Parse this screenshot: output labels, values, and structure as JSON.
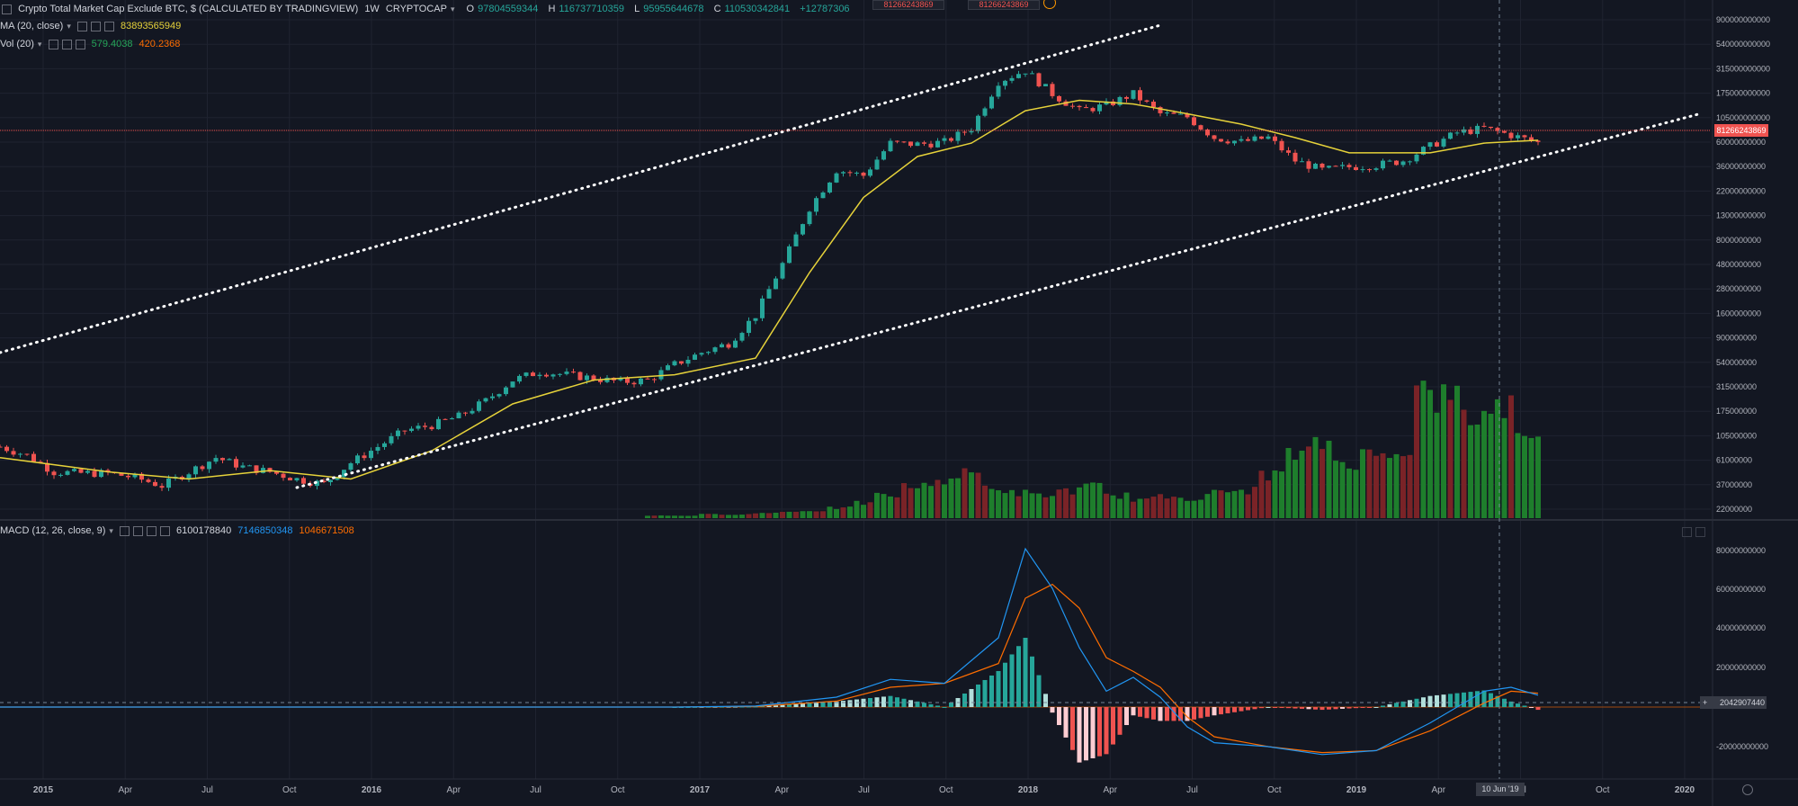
{
  "header": {
    "symbol_title": "Crypto Total Market Cap Exclude BTC, $ (CALCULATED BY TRADINGVIEW)",
    "interval": "1W",
    "exchange": "CRYPTOCAP",
    "o_label": "O",
    "o_value": "97804559344",
    "h_label": "H",
    "h_value": "116737710359",
    "l_label": "L",
    "l_value": "95955644678",
    "c_label": "C",
    "c_value": "110530342841",
    "change_value": "+12787306",
    "buy_price": "81266243869",
    "sell_price": "81266243869"
  },
  "indicators": {
    "ma_label": "MA (20, close)",
    "ma_value": "83893565949",
    "vol_label": "Vol (20)",
    "vol_value_1": "579.4038",
    "vol_value_2": "420.2368",
    "macd_label": "MACD (12, 26, close, 9)",
    "macd_hist": "6100178840",
    "macd_line": "7146850348",
    "macd_signal": "1046671508"
  },
  "price_badge": "81266243869",
  "macd_badge": "2042907440",
  "cursor_date": "10 Jun '19",
  "colors": {
    "up": "#26a69a",
    "down": "#ef5350",
    "ma": "#e6d23a",
    "macd": "#2196f3",
    "signal": "#ff6d00",
    "vol_up": "#1e7e2c",
    "vol_down": "#7a2327",
    "bg": "#131722"
  },
  "chart_data": [
    {
      "type": "candlestick",
      "title": "Crypto Total Market Cap Exclude BTC, $",
      "log_scale": true,
      "ylim": [
        17000000000,
        1000000000000
      ],
      "y_tick_labels": [
        "900000000000",
        "540000000000",
        "315000000000",
        "175000000000",
        "105000000000",
        "60000000000",
        "36000000000",
        "22000000000",
        "13000000000",
        "8000000000",
        "4800000000",
        "2800000000",
        "1600000000",
        "900000000",
        "540000000",
        "315000000",
        "175000000",
        "105000000",
        "61000000",
        "37000000",
        "22000000"
      ],
      "x_tick_labels": [
        "2015",
        "Apr",
        "Jul",
        "Oct",
        "2016",
        "Apr",
        "Jul",
        "Oct",
        "2017",
        "Apr",
        "Jul",
        "Oct",
        "2018",
        "Apr",
        "Jul",
        "Oct",
        "2019",
        "Apr",
        "Jul",
        "Oct",
        "2020"
      ],
      "x_range": [
        "2014-11",
        "2020-02"
      ],
      "close_series": [
        [
          "2014-11",
          120000000
        ],
        [
          "2014-12",
          100000000
        ],
        [
          "2015-01",
          70000000
        ],
        [
          "2015-02",
          68000000
        ],
        [
          "2015-03",
          68000000
        ],
        [
          "2015-04",
          62000000
        ],
        [
          "2015-05",
          52000000
        ],
        [
          "2015-06",
          70000000
        ],
        [
          "2015-07",
          95000000
        ],
        [
          "2015-08",
          78000000
        ],
        [
          "2015-09",
          70000000
        ],
        [
          "2015-10",
          60000000
        ],
        [
          "2015-11",
          54000000
        ],
        [
          "2015-12",
          85000000
        ],
        [
          "2016-01",
          120000000
        ],
        [
          "2016-02",
          170000000
        ],
        [
          "2016-03",
          190000000
        ],
        [
          "2016-04",
          230000000
        ],
        [
          "2016-05",
          320000000
        ],
        [
          "2016-06",
          500000000
        ],
        [
          "2016-07",
          600000000
        ],
        [
          "2016-08",
          560000000
        ],
        [
          "2016-09",
          520000000
        ],
        [
          "2016-10",
          480000000
        ],
        [
          "2016-11",
          500000000
        ],
        [
          "2016-12",
          700000000
        ],
        [
          "2017-01",
          900000000
        ],
        [
          "2017-02",
          1100000000
        ],
        [
          "2017-03",
          2000000000
        ],
        [
          "2017-04",
          6000000000
        ],
        [
          "2017-05",
          20000000000
        ],
        [
          "2017-06",
          45000000000
        ],
        [
          "2017-07",
          40000000000
        ],
        [
          "2017-08",
          80000000000
        ],
        [
          "2017-09",
          78000000000
        ],
        [
          "2017-10",
          82000000000
        ],
        [
          "2017-11",
          110000000000
        ],
        [
          "2017-12",
          300000000000
        ],
        [
          "2018-01",
          380000000000
        ],
        [
          "2018-02",
          230000000000
        ],
        [
          "2018-03",
          160000000000
        ],
        [
          "2018-04",
          180000000000
        ],
        [
          "2018-05",
          230000000000
        ],
        [
          "2018-06",
          150000000000
        ],
        [
          "2018-07",
          140000000000
        ],
        [
          "2018-08",
          90000000000
        ],
        [
          "2018-09",
          82000000000
        ],
        [
          "2018-10",
          90000000000
        ],
        [
          "2018-11",
          55000000000
        ],
        [
          "2018-12",
          45000000000
        ],
        [
          "2019-01",
          48000000000
        ],
        [
          "2019-02",
          50000000000
        ],
        [
          "2019-03",
          55000000000
        ],
        [
          "2019-04",
          75000000000
        ],
        [
          "2019-05",
          100000000000
        ],
        [
          "2019-06",
          110000000000
        ],
        [
          "2019-07",
          95000000000
        ],
        [
          "2019-08",
          81000000000
        ]
      ],
      "ma_series": [
        [
          "2014-11",
          95000000
        ],
        [
          "2015-03",
          70000000
        ],
        [
          "2015-06",
          60000000
        ],
        [
          "2015-09",
          72000000
        ],
        [
          "2015-12",
          60000000
        ],
        [
          "2016-03",
          110000000
        ],
        [
          "2016-06",
          300000000
        ],
        [
          "2016-09",
          500000000
        ],
        [
          "2016-12",
          560000000
        ],
        [
          "2017-03",
          800000000
        ],
        [
          "2017-05",
          5000000000
        ],
        [
          "2017-07",
          25000000000
        ],
        [
          "2017-09",
          60000000000
        ],
        [
          "2017-11",
          80000000000
        ],
        [
          "2018-01",
          160000000000
        ],
        [
          "2018-03",
          200000000000
        ],
        [
          "2018-05",
          185000000000
        ],
        [
          "2018-07",
          150000000000
        ],
        [
          "2018-09",
          120000000000
        ],
        [
          "2018-11",
          90000000000
        ],
        [
          "2019-01",
          65000000000
        ],
        [
          "2019-04",
          65000000000
        ],
        [
          "2019-06",
          80000000000
        ],
        [
          "2019-08",
          85000000000
        ]
      ],
      "trendlines": [
        {
          "from": [
            "2014-11",
            900000000
          ],
          "to": [
            "2018-06",
            1000000000000
          ]
        },
        {
          "from": [
            "2015-10",
            50000000
          ],
          "to": [
            "2020-02",
            150000000000
          ]
        }
      ]
    },
    {
      "type": "bar",
      "title": "Vol (20)",
      "note": "volume bars, relative heights",
      "values_relative": [
        0.02,
        0.02,
        0.03,
        0.03,
        0.04,
        0.05,
        0.06,
        0.08,
        0.12,
        0.18,
        0.25,
        0.3,
        0.35,
        0.25,
        0.2,
        0.18,
        0.22,
        0.25,
        0.18,
        0.15,
        0.17,
        0.16,
        0.2,
        0.22,
        0.35,
        0.5,
        0.6,
        0.45,
        0.5,
        0.55,
        1.0,
        0.95,
        0.8,
        0.9,
        0.7,
        0.6
      ]
    },
    {
      "type": "line",
      "title": "MACD (12, 26, close, 9)",
      "ylim": [
        -30000000000,
        90000000000
      ],
      "y_tick_labels": [
        "80000000000",
        "60000000000",
        "40000000000",
        "20000000000",
        "0",
        "-20000000000"
      ],
      "macd": [
        [
          "2014-11",
          0
        ],
        [
          "2016-12",
          0
        ],
        [
          "2017-03",
          500000000
        ],
        [
          "2017-06",
          5000000000
        ],
        [
          "2017-08",
          14000000000
        ],
        [
          "2017-10",
          12000000000
        ],
        [
          "2017-12",
          35000000000
        ],
        [
          "2018-01",
          80000000000
        ],
        [
          "2018-02",
          60000000000
        ],
        [
          "2018-03",
          30000000000
        ],
        [
          "2018-04",
          8000000000
        ],
        [
          "2018-05",
          15000000000
        ],
        [
          "2018-06",
          5000000000
        ],
        [
          "2018-07",
          -10000000000
        ],
        [
          "2018-08",
          -18000000000
        ],
        [
          "2018-10",
          -20000000000
        ],
        [
          "2018-12",
          -24000000000
        ],
        [
          "2019-02",
          -22000000000
        ],
        [
          "2019-04",
          -8000000000
        ],
        [
          "2019-06",
          8000000000
        ],
        [
          "2019-07",
          10000000000
        ],
        [
          "2019-08",
          6000000000
        ]
      ],
      "signal": [
        [
          "2014-11",
          0
        ],
        [
          "2016-12",
          0
        ],
        [
          "2017-03",
          300000000
        ],
        [
          "2017-06",
          3000000000
        ],
        [
          "2017-08",
          10000000000
        ],
        [
          "2017-10",
          12000000000
        ],
        [
          "2017-12",
          22000000000
        ],
        [
          "2018-01",
          55000000000
        ],
        [
          "2018-02",
          62000000000
        ],
        [
          "2018-03",
          50000000000
        ],
        [
          "2018-04",
          25000000000
        ],
        [
          "2018-05",
          18000000000
        ],
        [
          "2018-06",
          10000000000
        ],
        [
          "2018-07",
          -5000000000
        ],
        [
          "2018-08",
          -15000000000
        ],
        [
          "2018-10",
          -20000000000
        ],
        [
          "2018-12",
          -23000000000
        ],
        [
          "2019-02",
          -22000000000
        ],
        [
          "2019-04",
          -12000000000
        ],
        [
          "2019-06",
          2000000000
        ],
        [
          "2019-07",
          8000000000
        ],
        [
          "2019-08",
          7000000000
        ]
      ]
    }
  ]
}
